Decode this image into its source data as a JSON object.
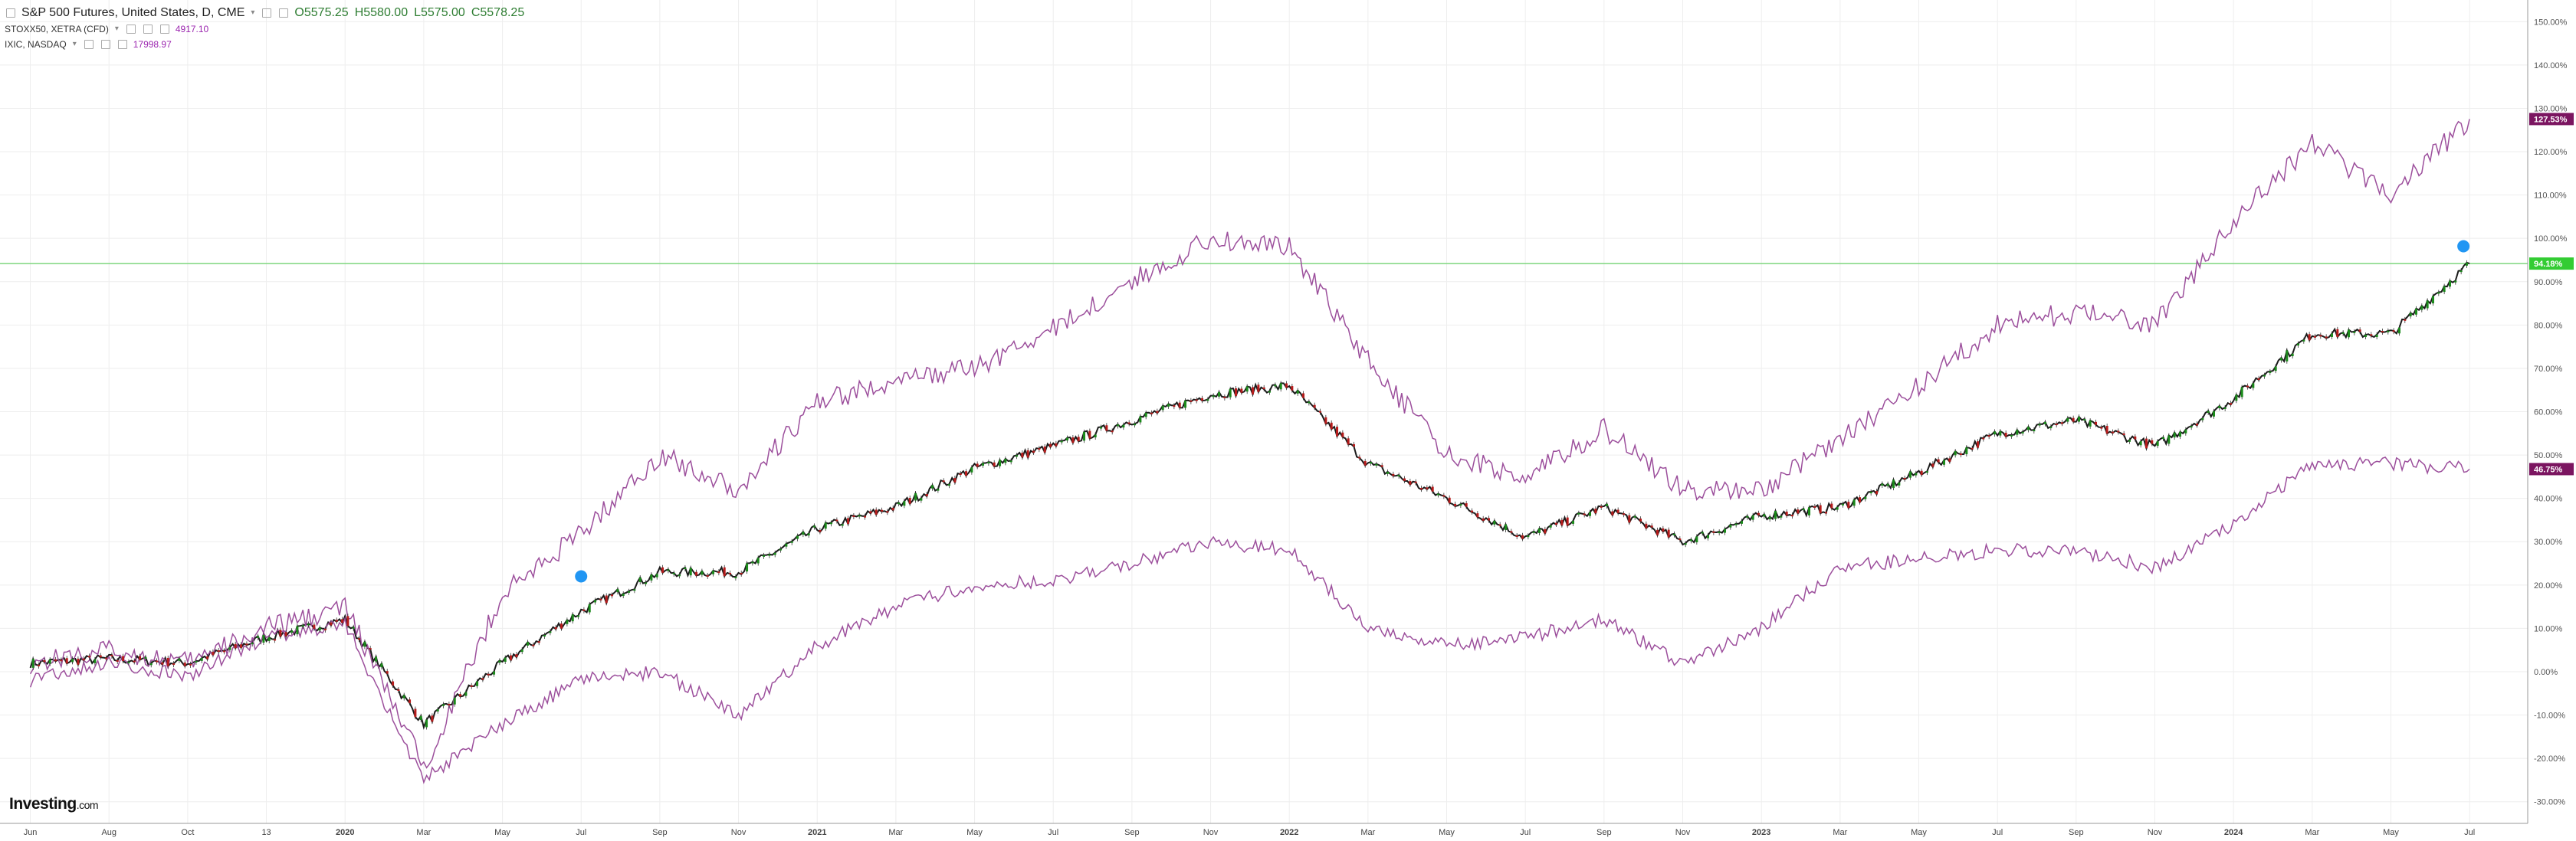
{
  "legend": {
    "main": {
      "title": "S&P 500 Futures, United States, D, CME",
      "open": "O5575.25",
      "high": "H5580.00",
      "low": "L5575.00",
      "close": "C5578.25"
    },
    "compare": [
      {
        "title": "STOXX50, XETRA (CFD)",
        "value": "4917.10",
        "color": "#9c27b0"
      },
      {
        "title": "IXIC, NASDAQ",
        "value": "17998.97",
        "color": "#9c27b0"
      }
    ]
  },
  "logo": {
    "brand": "Investing",
    "suffix": ".com"
  },
  "colors": {
    "background": "#ffffff",
    "grid": "#eeeeee",
    "sp500_line": "#1b1b1b",
    "candle_up": "#1b8a1b",
    "candle_down": "#b71c1c",
    "compare_line": "#9c4f9c",
    "ref_line": "#7ed67e",
    "sp500_label": "#33cc33",
    "compare_label": "#7b1560",
    "marker": "#2196f3"
  },
  "chart_data": {
    "type": "line",
    "ylabel_unit": "%",
    "ylim": [
      -35,
      155
    ],
    "yticks": [
      "150.00%",
      "140.00%",
      "130.00%",
      "120.00%",
      "110.00%",
      "100.00%",
      "90.00%",
      "80.00%",
      "70.00%",
      "60.00%",
      "50.00%",
      "40.00%",
      "30.00%",
      "20.00%",
      "10.00%",
      "0.00%",
      "-10.00%",
      "-20.00%",
      "-30.00%"
    ],
    "x_labels": [
      "Jun",
      "Aug",
      "Oct",
      "13",
      "2020",
      "Mar",
      "May",
      "Jul",
      "Sep",
      "Nov",
      "2021",
      "Mar",
      "May",
      "Jul",
      "Sep",
      "Nov",
      "2022",
      "Mar",
      "May",
      "Jul",
      "Sep",
      "Nov",
      "2023",
      "Mar",
      "May",
      "Jul",
      "Sep",
      "Nov",
      "2024",
      "Mar",
      "May",
      "Jul"
    ],
    "x": [
      "2019-06",
      "2019-08",
      "2019-10",
      "2019-12",
      "2020-01",
      "2020-03",
      "2020-05",
      "2020-07",
      "2020-09",
      "2020-11",
      "2021-01",
      "2021-03",
      "2021-05",
      "2021-07",
      "2021-09",
      "2021-11",
      "2022-01",
      "2022-03",
      "2022-05",
      "2022-07",
      "2022-09",
      "2022-11",
      "2023-01",
      "2023-03",
      "2023-05",
      "2023-07",
      "2023-09",
      "2023-11",
      "2024-01",
      "2024-03",
      "2024-05",
      "2024-07"
    ],
    "series": [
      {
        "values": [
          2,
          3,
          2,
          8,
          12,
          -12,
          2,
          14,
          23,
          23,
          33,
          38,
          47,
          52,
          58,
          64,
          66,
          48,
          40,
          31,
          38,
          30,
          36,
          38,
          46,
          55,
          58,
          52,
          63,
          78,
          78,
          94.18
        ]
      },
      {
        "values": [
          2,
          5,
          2,
          10,
          15,
          -22,
          18,
          32,
          50,
          42,
          62,
          67,
          70,
          79,
          90,
          100,
          98,
          72,
          50,
          45,
          56,
          42,
          42,
          54,
          66,
          80,
          83,
          80,
          104,
          122,
          110,
          127.53
        ]
      },
      {
        "values": [
          -2,
          2,
          -1,
          8,
          11,
          -25,
          -12,
          -2,
          0,
          -10,
          6,
          15,
          20,
          21,
          25,
          30,
          28,
          10,
          6,
          8,
          12,
          2,
          10,
          24,
          26,
          28,
          28,
          24,
          34,
          48,
          48,
          46.75
        ]
      }
    ],
    "reference_line": 94.18,
    "last_labels": [
      "94.18%",
      "127.53%",
      "46.75%"
    ],
    "grid": true
  }
}
